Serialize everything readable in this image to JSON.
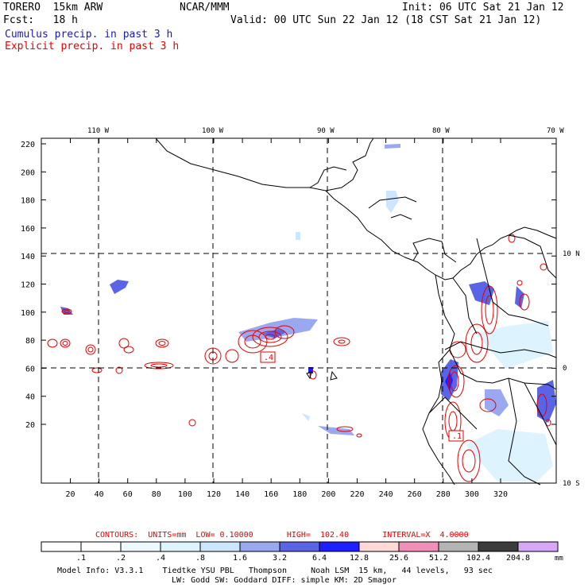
{
  "header": {
    "model": "TORERO  15km ARW",
    "center": "NCAR/MMM",
    "init": "Init: 06 UTC Sat 21 Jan 12",
    "fcst": "Fcst:   18 h",
    "valid": "Valid: 00 UTC Sun 22 Jan 12 (18 CST Sat 21 Jan 12)",
    "field1": "Cumulus precip. in past 3 h",
    "field2": "Explicit precip. in past 3 h"
  },
  "colors": {
    "field1": "#1a1ab4",
    "field2": "#e60000",
    "contour": "#e60000",
    "grid": "#000000"
  },
  "map": {
    "lon_labels": [
      "110 W",
      "100 W",
      "90 W",
      "80 W",
      "70 W"
    ],
    "lat_labels": [
      "10 N",
      "0",
      "10 S"
    ],
    "y_ticks": [
      "220",
      "200",
      "180",
      "160",
      "140",
      "120",
      "100",
      "80",
      "60",
      "40",
      "20"
    ],
    "x_ticks": [
      "20",
      "40",
      "60",
      "80",
      "100",
      "120",
      "140",
      "160",
      "180",
      "200",
      "220",
      "240",
      "260",
      "280",
      "300",
      "320"
    ],
    "contour_labels": [
      ".4",
      ".1"
    ]
  },
  "contour_info": {
    "text": "CONTOURS:  UNITS=mm  LOW= 0.10000       HIGH=  102.40       INTERVAL=X  4.0000"
  },
  "colorbar": {
    "labels": [
      ".1",
      ".2",
      ".4",
      ".8",
      "1.6",
      "3.2",
      "6.4",
      "12.8",
      "25.6",
      "51.2",
      "102.4",
      "204.8"
    ],
    "unit": "mm",
    "colors": [
      "#ffffff",
      "#ffffff",
      "#eef8ff",
      "#ddf4ff",
      "#cce6ff",
      "#9aa8f0",
      "#5a64e6",
      "#1e1eff",
      "#ffd8d8",
      "#f090b8",
      "#b4b4b4",
      "#3c3c3c",
      "#d8a8f8"
    ]
  },
  "footer": {
    "line1": "Model Info: V3.3.1    Tiedtke YSU PBL   Thompson     Noah LSM  15 km,   44 levels,   93 sec",
    "line2": "LW: Godd SW: Goddard DIFF: simple KM: 2D Smagor"
  }
}
